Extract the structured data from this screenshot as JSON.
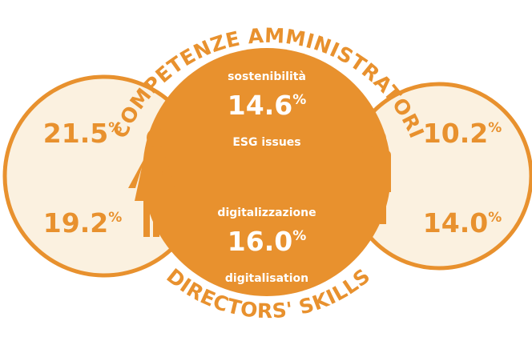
{
  "title_top": "COMPETENZE AMMINISTRATORI",
  "title_bottom": "DIRECTORS' SKILLS",
  "center": {
    "items": [
      {
        "label_it": "sostenibilità",
        "value": "14.6",
        "unit": "%",
        "label_en": "ESG issues"
      },
      {
        "label_it": "digitalizzazione",
        "value": "16.0",
        "unit": "%",
        "label_en": "digitalisation"
      }
    ]
  },
  "women": [
    {
      "value": "21.5",
      "unit": "%"
    },
    {
      "value": "19.2",
      "unit": "%"
    }
  ],
  "men": [
    {
      "value": "10.2",
      "unit": "%"
    },
    {
      "value": "14.0",
      "unit": "%"
    }
  ]
}
